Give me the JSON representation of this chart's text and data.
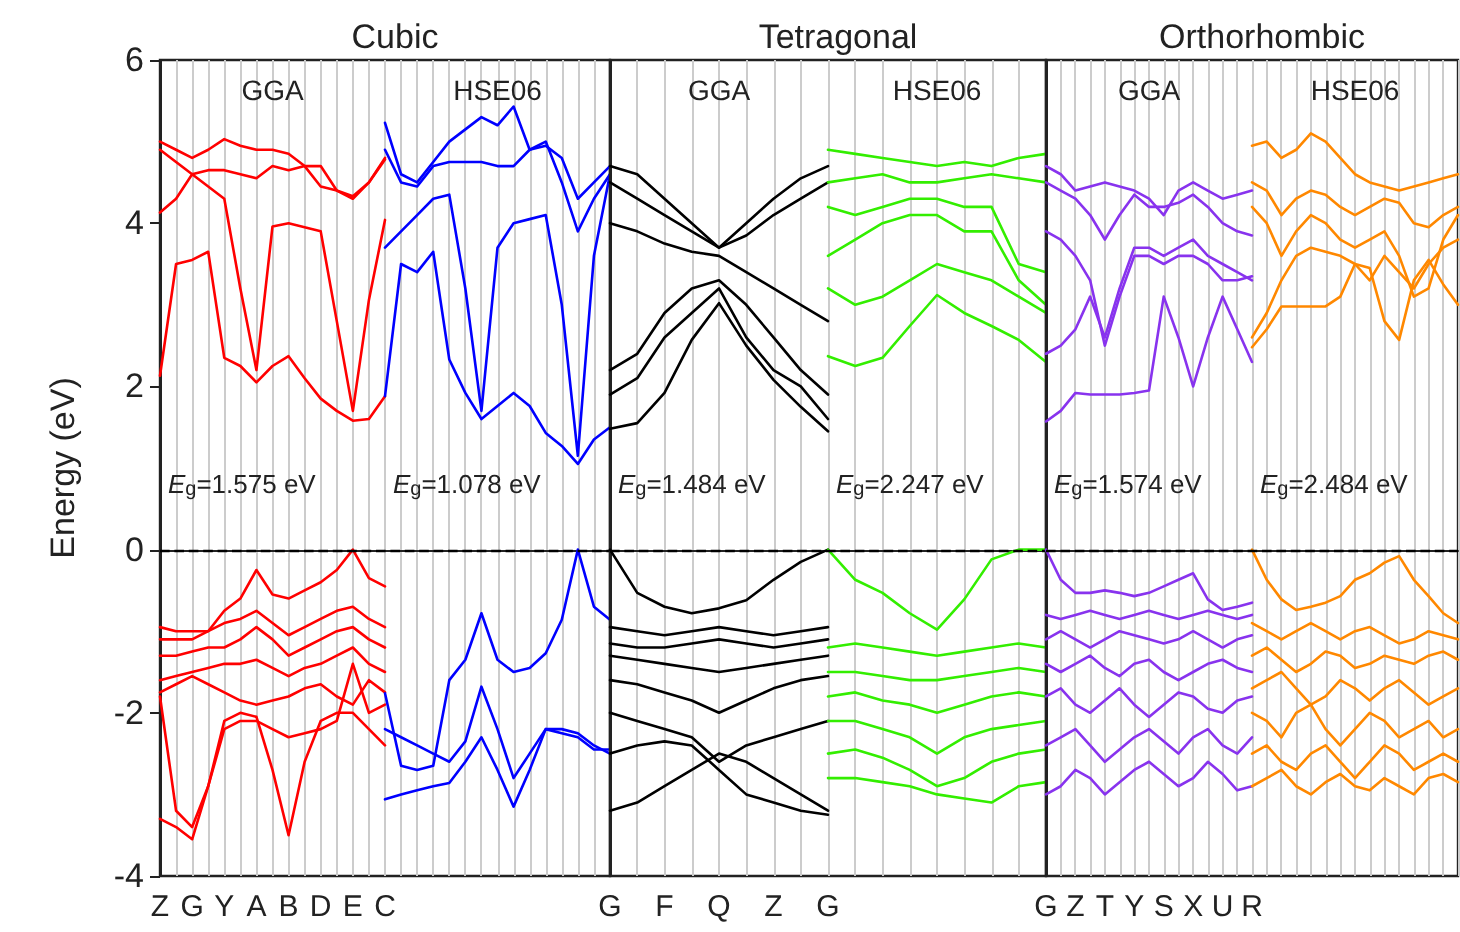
{
  "chart_data": [
    {
      "type": "line",
      "title": "Cubic",
      "ylabel": "Energy (eV)",
      "marker": "none",
      "grid": "x",
      "categories": [
        "Z",
        null,
        "G",
        null,
        "Y",
        null,
        "A",
        null,
        "B",
        null,
        "D",
        null,
        "E",
        null,
        "C",
        null,
        null,
        null,
        null,
        null,
        null,
        null,
        null,
        null,
        null,
        null,
        null,
        null,
        null
      ],
      "ylim": [
        -4,
        6
      ],
      "yticks": [
        -4,
        -2,
        0,
        2,
        4,
        6
      ],
      "ref_lines": [
        {
          "axis": "y",
          "value": 0,
          "line_style": "dashed",
          "color": "#000000"
        }
      ],
      "annotations": [
        "GGA",
        "HSE06",
        "E$_{g}$=1.575 eV",
        "E$_{g}$=1.078 eV"
      ],
      "series": [
        {
          "color": "#ff0000",
          "values": [
            2.13,
            3.5,
            3.55,
            3.65,
            2.35,
            2.25,
            2.05,
            2.25,
            2.37,
            2.1,
            1.85,
            1.7,
            1.58,
            1.6,
            1.88,
            null,
            null,
            null,
            null,
            null,
            null,
            null,
            null,
            null,
            null,
            null,
            null,
            null,
            null
          ]
        },
        {
          "color": "#ff0000",
          "values": [
            -0.95,
            -1.0,
            -1.0,
            -1.0,
            -0.75,
            -0.6,
            -0.25,
            -0.55,
            -0.6,
            -0.5,
            -0.4,
            -0.25,
            0.0,
            -0.35,
            -0.45,
            null,
            null,
            null,
            null,
            null,
            null,
            null,
            null,
            null,
            null,
            null,
            null,
            null,
            null
          ]
        },
        {
          "color": "#ff0000",
          "values": [
            5.0,
            4.9,
            4.8,
            4.9,
            5.03,
            4.95,
            4.9,
            4.9,
            4.85,
            4.7,
            4.45,
            4.4,
            4.33,
            4.5,
            4.78,
            null,
            null,
            null,
            null,
            null,
            null,
            null,
            null,
            null,
            null,
            null,
            null,
            null,
            null
          ]
        },
        {
          "color": "#ff0000",
          "values": [
            4.9,
            4.75,
            4.6,
            4.65,
            4.65,
            4.6,
            4.55,
            4.7,
            4.65,
            4.7,
            4.7,
            4.4,
            4.3,
            4.5,
            4.8,
            null,
            null,
            null,
            null,
            null,
            null,
            null,
            null,
            null,
            null,
            null,
            null,
            null,
            null
          ]
        },
        {
          "color": "#ff0000",
          "values": [
            4.13,
            4.3,
            4.6,
            4.45,
            4.3,
            3.2,
            2.2,
            3.96,
            4.0,
            3.95,
            3.9,
            2.8,
            1.7,
            3.06,
            4.04,
            null,
            null,
            null,
            null,
            null,
            null,
            null,
            null,
            null,
            null,
            null,
            null,
            null,
            null
          ]
        },
        {
          "color": "#ff0000",
          "values": [
            -1.1,
            -1.1,
            -1.1,
            -1.0,
            -0.9,
            -0.85,
            -0.75,
            -0.9,
            -1.05,
            -0.95,
            -0.85,
            -0.75,
            -0.7,
            -0.85,
            -0.95,
            null,
            null,
            null,
            null,
            null,
            null,
            null,
            null,
            null,
            null,
            null,
            null,
            null,
            null
          ]
        },
        {
          "color": "#ff0000",
          "values": [
            -1.3,
            -1.3,
            -1.25,
            -1.2,
            -1.2,
            -1.1,
            -0.95,
            -1.1,
            -1.3,
            -1.2,
            -1.1,
            -1.0,
            -0.95,
            -1.1,
            -1.2,
            null,
            null,
            null,
            null,
            null,
            null,
            null,
            null,
            null,
            null,
            null,
            null,
            null,
            null
          ]
        },
        {
          "color": "#ff0000",
          "values": [
            -1.6,
            -1.55,
            -1.5,
            -1.45,
            -1.4,
            -1.4,
            -1.35,
            -1.45,
            -1.55,
            -1.45,
            -1.4,
            -1.3,
            -1.2,
            -1.4,
            -1.5,
            null,
            null,
            null,
            null,
            null,
            null,
            null,
            null,
            null,
            null,
            null,
            null,
            null,
            null
          ]
        },
        {
          "color": "#ff0000",
          "values": [
            -1.75,
            -1.65,
            -1.55,
            -1.65,
            -1.75,
            -1.85,
            -1.9,
            -1.85,
            -1.8,
            -1.7,
            -1.65,
            -1.8,
            -1.9,
            -1.6,
            -1.75,
            null,
            null,
            null,
            null,
            null,
            null,
            null,
            null,
            null,
            null,
            null,
            null,
            null,
            null
          ]
        },
        {
          "color": "#ff0000",
          "values": [
            -1.8,
            -3.2,
            -3.4,
            -2.9,
            -2.1,
            -2.0,
            -2.05,
            -2.7,
            -3.5,
            -2.6,
            -2.1,
            -2.0,
            -2.0,
            -2.2,
            -2.4,
            null,
            null,
            null,
            null,
            null,
            null,
            null,
            null,
            null,
            null,
            null,
            null,
            null,
            null
          ]
        },
        {
          "color": "#ff0000",
          "values": [
            -3.3,
            -3.4,
            -3.55,
            -2.9,
            -2.2,
            -2.1,
            -2.1,
            -2.2,
            -2.3,
            -2.25,
            -2.2,
            -2.1,
            -1.4,
            -2.0,
            -1.9,
            null,
            null,
            null,
            null,
            null,
            null,
            null,
            null,
            null,
            null,
            null,
            null,
            null,
            null
          ]
        },
        {
          "color": "#0000ff",
          "values": [
            null,
            null,
            null,
            null,
            null,
            null,
            null,
            null,
            null,
            null,
            null,
            null,
            null,
            null,
            1.88,
            3.5,
            3.4,
            3.65,
            2.33,
            1.92,
            1.6,
            1.76,
            1.92,
            1.76,
            1.43,
            1.27,
            1.05,
            1.35,
            1.5
          ]
        },
        {
          "color": "#0000ff",
          "values": [
            null,
            null,
            null,
            null,
            null,
            null,
            null,
            null,
            null,
            null,
            null,
            null,
            null,
            null,
            -1.76,
            -2.65,
            -2.7,
            -2.65,
            -1.6,
            -1.35,
            -0.78,
            -1.35,
            -1.5,
            -1.45,
            -1.27,
            -0.86,
            0.0,
            -0.7,
            -0.86
          ]
        },
        {
          "color": "#0000ff",
          "values": [
            null,
            null,
            null,
            null,
            null,
            null,
            null,
            null,
            null,
            null,
            null,
            null,
            null,
            null,
            5.23,
            4.6,
            4.5,
            4.75,
            5.0,
            5.15,
            5.3,
            5.2,
            5.43,
            4.9,
            4.95,
            4.8,
            4.3,
            4.5,
            4.7
          ]
        },
        {
          "color": "#0000ff",
          "values": [
            null,
            null,
            null,
            null,
            null,
            null,
            null,
            null,
            null,
            null,
            null,
            null,
            null,
            null,
            4.9,
            4.5,
            4.45,
            4.7,
            4.75,
            4.75,
            4.75,
            4.7,
            4.7,
            4.9,
            5.0,
            4.5,
            3.9,
            4.3,
            4.6
          ]
        },
        {
          "color": "#0000ff",
          "values": [
            null,
            null,
            null,
            null,
            null,
            null,
            null,
            null,
            null,
            null,
            null,
            null,
            null,
            null,
            3.7,
            3.9,
            4.1,
            4.3,
            4.35,
            3.2,
            1.7,
            3.7,
            4.0,
            4.05,
            4.1,
            3.0,
            1.15,
            3.6,
            4.6
          ]
        },
        {
          "color": "#0000ff",
          "values": [
            null,
            null,
            null,
            null,
            null,
            null,
            null,
            null,
            null,
            null,
            null,
            null,
            null,
            null,
            -2.2,
            -2.3,
            -2.4,
            -2.5,
            -2.6,
            -2.35,
            -1.68,
            -2.2,
            -2.8,
            -2.5,
            -2.2,
            -2.2,
            -2.25,
            -2.4,
            -2.5
          ]
        },
        {
          "color": "#0000ff",
          "values": [
            null,
            null,
            null,
            null,
            null,
            null,
            null,
            null,
            null,
            null,
            null,
            null,
            null,
            null,
            -3.06,
            -3.0,
            -2.95,
            -2.9,
            -2.86,
            -2.6,
            -2.3,
            -2.7,
            -3.15,
            -2.7,
            -2.2,
            -2.25,
            -2.3,
            -2.45,
            -2.45
          ]
        }
      ]
    },
    {
      "type": "line",
      "title": "Tetragonal",
      "marker": "none",
      "grid": "x",
      "tick_labels": "x",
      "categories": [
        "G",
        null,
        "F",
        null,
        "Q",
        null,
        "Z",
        null,
        "G",
        null,
        null,
        null,
        null,
        null,
        null,
        null,
        null
      ],
      "ylim": [
        -4,
        6
      ],
      "yticks": [
        -4,
        -2,
        0,
        2,
        4,
        6
      ],
      "ref_lines": [
        {
          "axis": "y",
          "value": 0,
          "line_style": "dashed",
          "color": "#000000"
        }
      ],
      "annotations": [
        "GGA",
        "HSE06",
        "E$_{g}$=1.484 eV",
        "E$_{g}$=2.247 eV"
      ],
      "series": [
        {
          "color": "#000000",
          "values": [
            1.48,
            1.55,
            1.92,
            2.57,
            3.02,
            2.5,
            2.08,
            1.75,
            1.45,
            null,
            null,
            null,
            null,
            null,
            null,
            null,
            null
          ]
        },
        {
          "color": "#000000",
          "values": [
            0.0,
            -0.53,
            -0.7,
            -0.78,
            -0.72,
            -0.62,
            -0.37,
            -0.15,
            0.0,
            null,
            null,
            null,
            null,
            null,
            null,
            null,
            null
          ]
        },
        {
          "color": "#000000",
          "values": [
            4.7,
            4.6,
            4.3,
            4.0,
            3.7,
            4.0,
            4.3,
            4.55,
            4.7,
            null,
            null,
            null,
            null,
            null,
            null,
            null,
            null
          ]
        },
        {
          "color": "#000000",
          "values": [
            4.5,
            4.3,
            4.1,
            3.9,
            3.7,
            3.85,
            4.1,
            4.3,
            4.5,
            null,
            null,
            null,
            null,
            null,
            null,
            null,
            null
          ]
        },
        {
          "color": "#000000",
          "values": [
            4.0,
            3.9,
            3.75,
            3.65,
            3.6,
            3.4,
            3.2,
            3.0,
            2.8,
            null,
            null,
            null,
            null,
            null,
            null,
            null,
            null
          ]
        },
        {
          "color": "#000000",
          "values": [
            2.2,
            2.4,
            2.9,
            3.2,
            3.3,
            3.0,
            2.6,
            2.2,
            1.9,
            null,
            null,
            null,
            null,
            null,
            null,
            null,
            null
          ]
        },
        {
          "color": "#000000",
          "values": [
            1.9,
            2.1,
            2.6,
            2.9,
            3.2,
            2.6,
            2.2,
            2.0,
            1.6,
            null,
            null,
            null,
            null,
            null,
            null,
            null,
            null
          ]
        },
        {
          "color": "#000000",
          "values": [
            -0.95,
            -1.0,
            -1.05,
            -1.0,
            -0.95,
            -1.0,
            -1.05,
            -1.0,
            -0.95,
            null,
            null,
            null,
            null,
            null,
            null,
            null,
            null
          ]
        },
        {
          "color": "#000000",
          "values": [
            -1.15,
            -1.2,
            -1.2,
            -1.15,
            -1.1,
            -1.15,
            -1.2,
            -1.15,
            -1.1,
            null,
            null,
            null,
            null,
            null,
            null,
            null,
            null
          ]
        },
        {
          "color": "#000000",
          "values": [
            -1.3,
            -1.35,
            -1.4,
            -1.45,
            -1.5,
            -1.45,
            -1.4,
            -1.35,
            -1.3,
            null,
            null,
            null,
            null,
            null,
            null,
            null,
            null
          ]
        },
        {
          "color": "#000000",
          "values": [
            -1.6,
            -1.65,
            -1.75,
            -1.85,
            -2.0,
            -1.85,
            -1.7,
            -1.6,
            -1.55,
            null,
            null,
            null,
            null,
            null,
            null,
            null,
            null
          ]
        },
        {
          "color": "#000000",
          "values": [
            -2.0,
            -2.1,
            -2.2,
            -2.3,
            -2.6,
            -2.4,
            -2.3,
            -2.2,
            -2.1,
            null,
            null,
            null,
            null,
            null,
            null,
            null,
            null
          ]
        },
        {
          "color": "#000000",
          "values": [
            -2.5,
            -2.4,
            -2.35,
            -2.4,
            -2.7,
            -3.0,
            -3.1,
            -3.2,
            -3.25,
            null,
            null,
            null,
            null,
            null,
            null,
            null,
            null
          ]
        },
        {
          "color": "#000000",
          "values": [
            -3.2,
            -3.1,
            -2.9,
            -2.7,
            -2.5,
            -2.6,
            -2.8,
            -3.0,
            -3.2,
            null,
            null,
            null,
            null,
            null,
            null,
            null,
            null
          ]
        },
        {
          "color": "#33ee00",
          "values": [
            null,
            null,
            null,
            null,
            null,
            null,
            null,
            null,
            2.37,
            2.25,
            2.35,
            2.74,
            3.12,
            2.9,
            2.74,
            2.57,
            2.3
          ]
        },
        {
          "color": "#33ee00",
          "values": [
            null,
            null,
            null,
            null,
            null,
            null,
            null,
            null,
            0.0,
            -0.37,
            -0.53,
            -0.78,
            -0.98,
            -0.61,
            -0.12,
            0.0,
            0.0
          ]
        },
        {
          "color": "#33ee00",
          "values": [
            null,
            null,
            null,
            null,
            null,
            null,
            null,
            null,
            4.9,
            4.85,
            4.8,
            4.75,
            4.7,
            4.75,
            4.7,
            4.8,
            4.85
          ]
        },
        {
          "color": "#33ee00",
          "values": [
            null,
            null,
            null,
            null,
            null,
            null,
            null,
            null,
            4.5,
            4.55,
            4.6,
            4.5,
            4.5,
            4.55,
            4.6,
            4.55,
            4.5
          ]
        },
        {
          "color": "#33ee00",
          "values": [
            null,
            null,
            null,
            null,
            null,
            null,
            null,
            null,
            4.2,
            4.1,
            4.2,
            4.3,
            4.3,
            4.2,
            4.2,
            3.5,
            3.4
          ]
        },
        {
          "color": "#33ee00",
          "values": [
            null,
            null,
            null,
            null,
            null,
            null,
            null,
            null,
            3.6,
            3.8,
            4.0,
            4.1,
            4.1,
            3.9,
            3.9,
            3.3,
            3.0
          ]
        },
        {
          "color": "#33ee00",
          "values": [
            null,
            null,
            null,
            null,
            null,
            null,
            null,
            null,
            3.2,
            3.0,
            3.1,
            3.3,
            3.5,
            3.4,
            3.3,
            3.1,
            2.9
          ]
        },
        {
          "color": "#33ee00",
          "values": [
            null,
            null,
            null,
            null,
            null,
            null,
            null,
            null,
            -1.2,
            -1.15,
            -1.2,
            -1.25,
            -1.3,
            -1.25,
            -1.2,
            -1.15,
            -1.2
          ]
        },
        {
          "color": "#33ee00",
          "values": [
            null,
            null,
            null,
            null,
            null,
            null,
            null,
            null,
            -1.5,
            -1.5,
            -1.55,
            -1.6,
            -1.6,
            -1.55,
            -1.5,
            -1.45,
            -1.5
          ]
        },
        {
          "color": "#33ee00",
          "values": [
            null,
            null,
            null,
            null,
            null,
            null,
            null,
            null,
            -1.8,
            -1.75,
            -1.85,
            -1.9,
            -2.0,
            -1.9,
            -1.8,
            -1.75,
            -1.8
          ]
        },
        {
          "color": "#33ee00",
          "values": [
            null,
            null,
            null,
            null,
            null,
            null,
            null,
            null,
            -2.1,
            -2.1,
            -2.2,
            -2.3,
            -2.5,
            -2.3,
            -2.2,
            -2.15,
            -2.1
          ]
        },
        {
          "color": "#33ee00",
          "values": [
            null,
            null,
            null,
            null,
            null,
            null,
            null,
            null,
            -2.5,
            -2.45,
            -2.55,
            -2.7,
            -2.9,
            -2.8,
            -2.6,
            -2.5,
            -2.45
          ]
        },
        {
          "color": "#33ee00",
          "values": [
            null,
            null,
            null,
            null,
            null,
            null,
            null,
            null,
            -2.8,
            -2.8,
            -2.85,
            -2.9,
            -3.0,
            -3.05,
            -3.1,
            -2.9,
            -2.85
          ]
        }
      ]
    },
    {
      "type": "line",
      "title": "Orthorhombic",
      "marker": "none",
      "grid": "x",
      "tick_labels": "x",
      "categories": [
        "G",
        null,
        "Z",
        null,
        "T",
        null,
        "Y",
        null,
        "S",
        null,
        "X",
        null,
        "U",
        null,
        "R",
        null,
        null,
        null,
        null,
        null,
        null,
        null,
        null,
        null,
        null,
        null,
        null,
        null,
        null
      ],
      "ylim": [
        -4,
        6
      ],
      "yticks": [
        -4,
        -2,
        0,
        2,
        4,
        6
      ],
      "ref_lines": [
        {
          "axis": "y",
          "value": 0,
          "line_style": "dashed",
          "color": "#000000"
        }
      ],
      "annotations": [
        "GGA",
        "HSE06",
        "E$_{g}$=1.574 eV",
        "E$_{g}$=2.484 eV"
      ],
      "series": [
        {
          "color": "#8833ee",
          "values": [
            1.57,
            1.7,
            1.92,
            1.9,
            1.9,
            1.9,
            1.92,
            1.95,
            3.1,
            2.6,
            2.0,
            2.6,
            3.1,
            2.7,
            2.3,
            null,
            null,
            null,
            null,
            null,
            null,
            null,
            null,
            null,
            null,
            null,
            null,
            null,
            null
          ]
        },
        {
          "color": "#8833ee",
          "values": [
            0.0,
            -0.37,
            -0.53,
            -0.53,
            -0.5,
            -0.53,
            -0.57,
            -0.53,
            -0.45,
            -0.37,
            -0.29,
            -0.61,
            -0.74,
            -0.7,
            -0.65,
            null,
            null,
            null,
            null,
            null,
            null,
            null,
            null,
            null,
            null,
            null,
            null,
            null,
            null
          ]
        },
        {
          "color": "#8833ee",
          "values": [
            4.7,
            4.6,
            4.4,
            4.45,
            4.5,
            4.45,
            4.4,
            4.3,
            4.1,
            4.4,
            4.5,
            4.4,
            4.3,
            4.35,
            4.4,
            null,
            null,
            null,
            null,
            null,
            null,
            null,
            null,
            null,
            null,
            null,
            null,
            null,
            null
          ]
        },
        {
          "color": "#8833ee",
          "values": [
            4.5,
            4.4,
            4.3,
            4.1,
            3.8,
            4.1,
            4.35,
            4.2,
            4.2,
            4.25,
            4.35,
            4.2,
            4.0,
            3.9,
            3.85,
            null,
            null,
            null,
            null,
            null,
            null,
            null,
            null,
            null,
            null,
            null,
            null,
            null,
            null
          ]
        },
        {
          "color": "#8833ee",
          "values": [
            3.9,
            3.8,
            3.6,
            3.3,
            2.5,
            3.1,
            3.6,
            3.6,
            3.5,
            3.6,
            3.6,
            3.5,
            3.3,
            3.3,
            3.35,
            null,
            null,
            null,
            null,
            null,
            null,
            null,
            null,
            null,
            null,
            null,
            null,
            null,
            null
          ]
        },
        {
          "color": "#8833ee",
          "values": [
            2.4,
            2.5,
            2.7,
            3.1,
            2.6,
            3.2,
            3.7,
            3.7,
            3.6,
            3.7,
            3.8,
            3.6,
            3.5,
            3.4,
            3.3,
            null,
            null,
            null,
            null,
            null,
            null,
            null,
            null,
            null,
            null,
            null,
            null,
            null,
            null
          ]
        },
        {
          "color": "#8833ee",
          "values": [
            -0.8,
            -0.85,
            -0.8,
            -0.75,
            -0.8,
            -0.85,
            -0.8,
            -0.75,
            -0.8,
            -0.85,
            -0.8,
            -0.75,
            -0.8,
            -0.85,
            -0.8,
            null,
            null,
            null,
            null,
            null,
            null,
            null,
            null,
            null,
            null,
            null,
            null,
            null,
            null
          ]
        },
        {
          "color": "#8833ee",
          "values": [
            -1.1,
            -1.0,
            -1.1,
            -1.2,
            -1.1,
            -1.0,
            -1.05,
            -1.1,
            -1.15,
            -1.1,
            -1.0,
            -1.1,
            -1.2,
            -1.1,
            -1.05,
            null,
            null,
            null,
            null,
            null,
            null,
            null,
            null,
            null,
            null,
            null,
            null,
            null,
            null
          ]
        },
        {
          "color": "#8833ee",
          "values": [
            -1.4,
            -1.5,
            -1.4,
            -1.3,
            -1.45,
            -1.55,
            -1.4,
            -1.35,
            -1.5,
            -1.6,
            -1.5,
            -1.4,
            -1.35,
            -1.45,
            -1.5,
            null,
            null,
            null,
            null,
            null,
            null,
            null,
            null,
            null,
            null,
            null,
            null,
            null,
            null
          ]
        },
        {
          "color": "#8833ee",
          "values": [
            -1.8,
            -1.7,
            -1.9,
            -2.0,
            -1.85,
            -1.7,
            -1.9,
            -2.05,
            -1.9,
            -1.75,
            -1.8,
            -1.95,
            -2.0,
            -1.85,
            -1.8,
            null,
            null,
            null,
            null,
            null,
            null,
            null,
            null,
            null,
            null,
            null,
            null,
            null,
            null
          ]
        },
        {
          "color": "#8833ee",
          "values": [
            -2.4,
            -2.3,
            -2.2,
            -2.4,
            -2.6,
            -2.45,
            -2.3,
            -2.2,
            -2.35,
            -2.5,
            -2.3,
            -2.2,
            -2.4,
            -2.5,
            -2.3,
            null,
            null,
            null,
            null,
            null,
            null,
            null,
            null,
            null,
            null,
            null,
            null,
            null,
            null
          ]
        },
        {
          "color": "#8833ee",
          "values": [
            -3.0,
            -2.9,
            -2.7,
            -2.8,
            -3.0,
            -2.85,
            -2.7,
            -2.6,
            -2.75,
            -2.9,
            -2.8,
            -2.6,
            -2.75,
            -2.95,
            -2.9,
            null,
            null,
            null,
            null,
            null,
            null,
            null,
            null,
            null,
            null,
            null,
            null,
            null,
            null
          ]
        },
        {
          "color": "#ff8800",
          "values": [
            null,
            null,
            null,
            null,
            null,
            null,
            null,
            null,
            null,
            null,
            null,
            null,
            null,
            null,
            2.48,
            2.7,
            2.98,
            2.98,
            2.98,
            2.98,
            3.1,
            3.5,
            3.45,
            2.8,
            2.57,
            3.3,
            3.55,
            3.25,
            3.0
          ]
        },
        {
          "color": "#ff8800",
          "values": [
            null,
            null,
            null,
            null,
            null,
            null,
            null,
            null,
            null,
            null,
            null,
            null,
            null,
            null,
            0.0,
            -0.37,
            -0.61,
            -0.74,
            -0.7,
            -0.65,
            -0.57,
            -0.37,
            -0.29,
            -0.16,
            -0.08,
            -0.37,
            -0.57,
            -0.78,
            -0.9
          ]
        },
        {
          "color": "#ff8800",
          "values": [
            null,
            null,
            null,
            null,
            null,
            null,
            null,
            null,
            null,
            null,
            null,
            null,
            null,
            null,
            4.95,
            5.0,
            4.8,
            4.9,
            5.1,
            5.0,
            4.8,
            4.6,
            4.5,
            4.45,
            4.4,
            4.45,
            4.5,
            4.55,
            4.6
          ]
        },
        {
          "color": "#ff8800",
          "values": [
            null,
            null,
            null,
            null,
            null,
            null,
            null,
            null,
            null,
            null,
            null,
            null,
            null,
            null,
            4.5,
            4.4,
            4.1,
            4.3,
            4.4,
            4.35,
            4.2,
            4.1,
            4.2,
            4.3,
            4.25,
            4.0,
            3.95,
            4.1,
            4.2
          ]
        },
        {
          "color": "#ff8800",
          "values": [
            null,
            null,
            null,
            null,
            null,
            null,
            null,
            null,
            null,
            null,
            null,
            null,
            null,
            null,
            4.2,
            4.0,
            3.6,
            3.9,
            4.1,
            4.0,
            3.8,
            3.7,
            3.8,
            3.9,
            3.6,
            3.1,
            3.2,
            3.8,
            4.1
          ]
        },
        {
          "color": "#ff8800",
          "values": [
            null,
            null,
            null,
            null,
            null,
            null,
            null,
            null,
            null,
            null,
            null,
            null,
            null,
            null,
            2.6,
            2.9,
            3.3,
            3.6,
            3.7,
            3.65,
            3.6,
            3.5,
            3.3,
            3.6,
            3.4,
            3.2,
            3.5,
            3.7,
            3.8
          ]
        },
        {
          "color": "#ff8800",
          "values": [
            null,
            null,
            null,
            null,
            null,
            null,
            null,
            null,
            null,
            null,
            null,
            null,
            null,
            null,
            -0.9,
            -1.0,
            -1.1,
            -1.0,
            -0.9,
            -1.0,
            -1.1,
            -1.0,
            -0.95,
            -1.05,
            -1.15,
            -1.1,
            -1.0,
            -1.05,
            -1.1
          ]
        },
        {
          "color": "#ff8800",
          "values": [
            null,
            null,
            null,
            null,
            null,
            null,
            null,
            null,
            null,
            null,
            null,
            null,
            null,
            null,
            -1.3,
            -1.2,
            -1.35,
            -1.5,
            -1.4,
            -1.25,
            -1.3,
            -1.45,
            -1.4,
            -1.3,
            -1.35,
            -1.4,
            -1.3,
            -1.25,
            -1.35
          ]
        },
        {
          "color": "#ff8800",
          "values": [
            null,
            null,
            null,
            null,
            null,
            null,
            null,
            null,
            null,
            null,
            null,
            null,
            null,
            null,
            -1.7,
            -1.6,
            -1.5,
            -1.7,
            -1.9,
            -1.8,
            -1.6,
            -1.7,
            -1.85,
            -1.7,
            -1.6,
            -1.75,
            -1.9,
            -1.8,
            -1.7
          ]
        },
        {
          "color": "#ff8800",
          "values": [
            null,
            null,
            null,
            null,
            null,
            null,
            null,
            null,
            null,
            null,
            null,
            null,
            null,
            null,
            -2.0,
            -2.1,
            -2.3,
            -2.0,
            -1.9,
            -2.2,
            -2.4,
            -2.2,
            -2.0,
            -2.1,
            -2.3,
            -2.2,
            -2.1,
            -2.3,
            -2.2
          ]
        },
        {
          "color": "#ff8800",
          "values": [
            null,
            null,
            null,
            null,
            null,
            null,
            null,
            null,
            null,
            null,
            null,
            null,
            null,
            null,
            -2.5,
            -2.4,
            -2.6,
            -2.7,
            -2.5,
            -2.4,
            -2.6,
            -2.8,
            -2.6,
            -2.4,
            -2.5,
            -2.7,
            -2.6,
            -2.5,
            -2.6
          ]
        },
        {
          "color": "#ff8800",
          "values": [
            null,
            null,
            null,
            null,
            null,
            null,
            null,
            null,
            null,
            null,
            null,
            null,
            null,
            null,
            -2.9,
            -2.8,
            -2.7,
            -2.9,
            -3.0,
            -2.85,
            -2.75,
            -2.9,
            -2.95,
            -2.8,
            -2.9,
            -3.0,
            -2.8,
            -2.75,
            -2.85
          ]
        }
      ]
    }
  ]
}
